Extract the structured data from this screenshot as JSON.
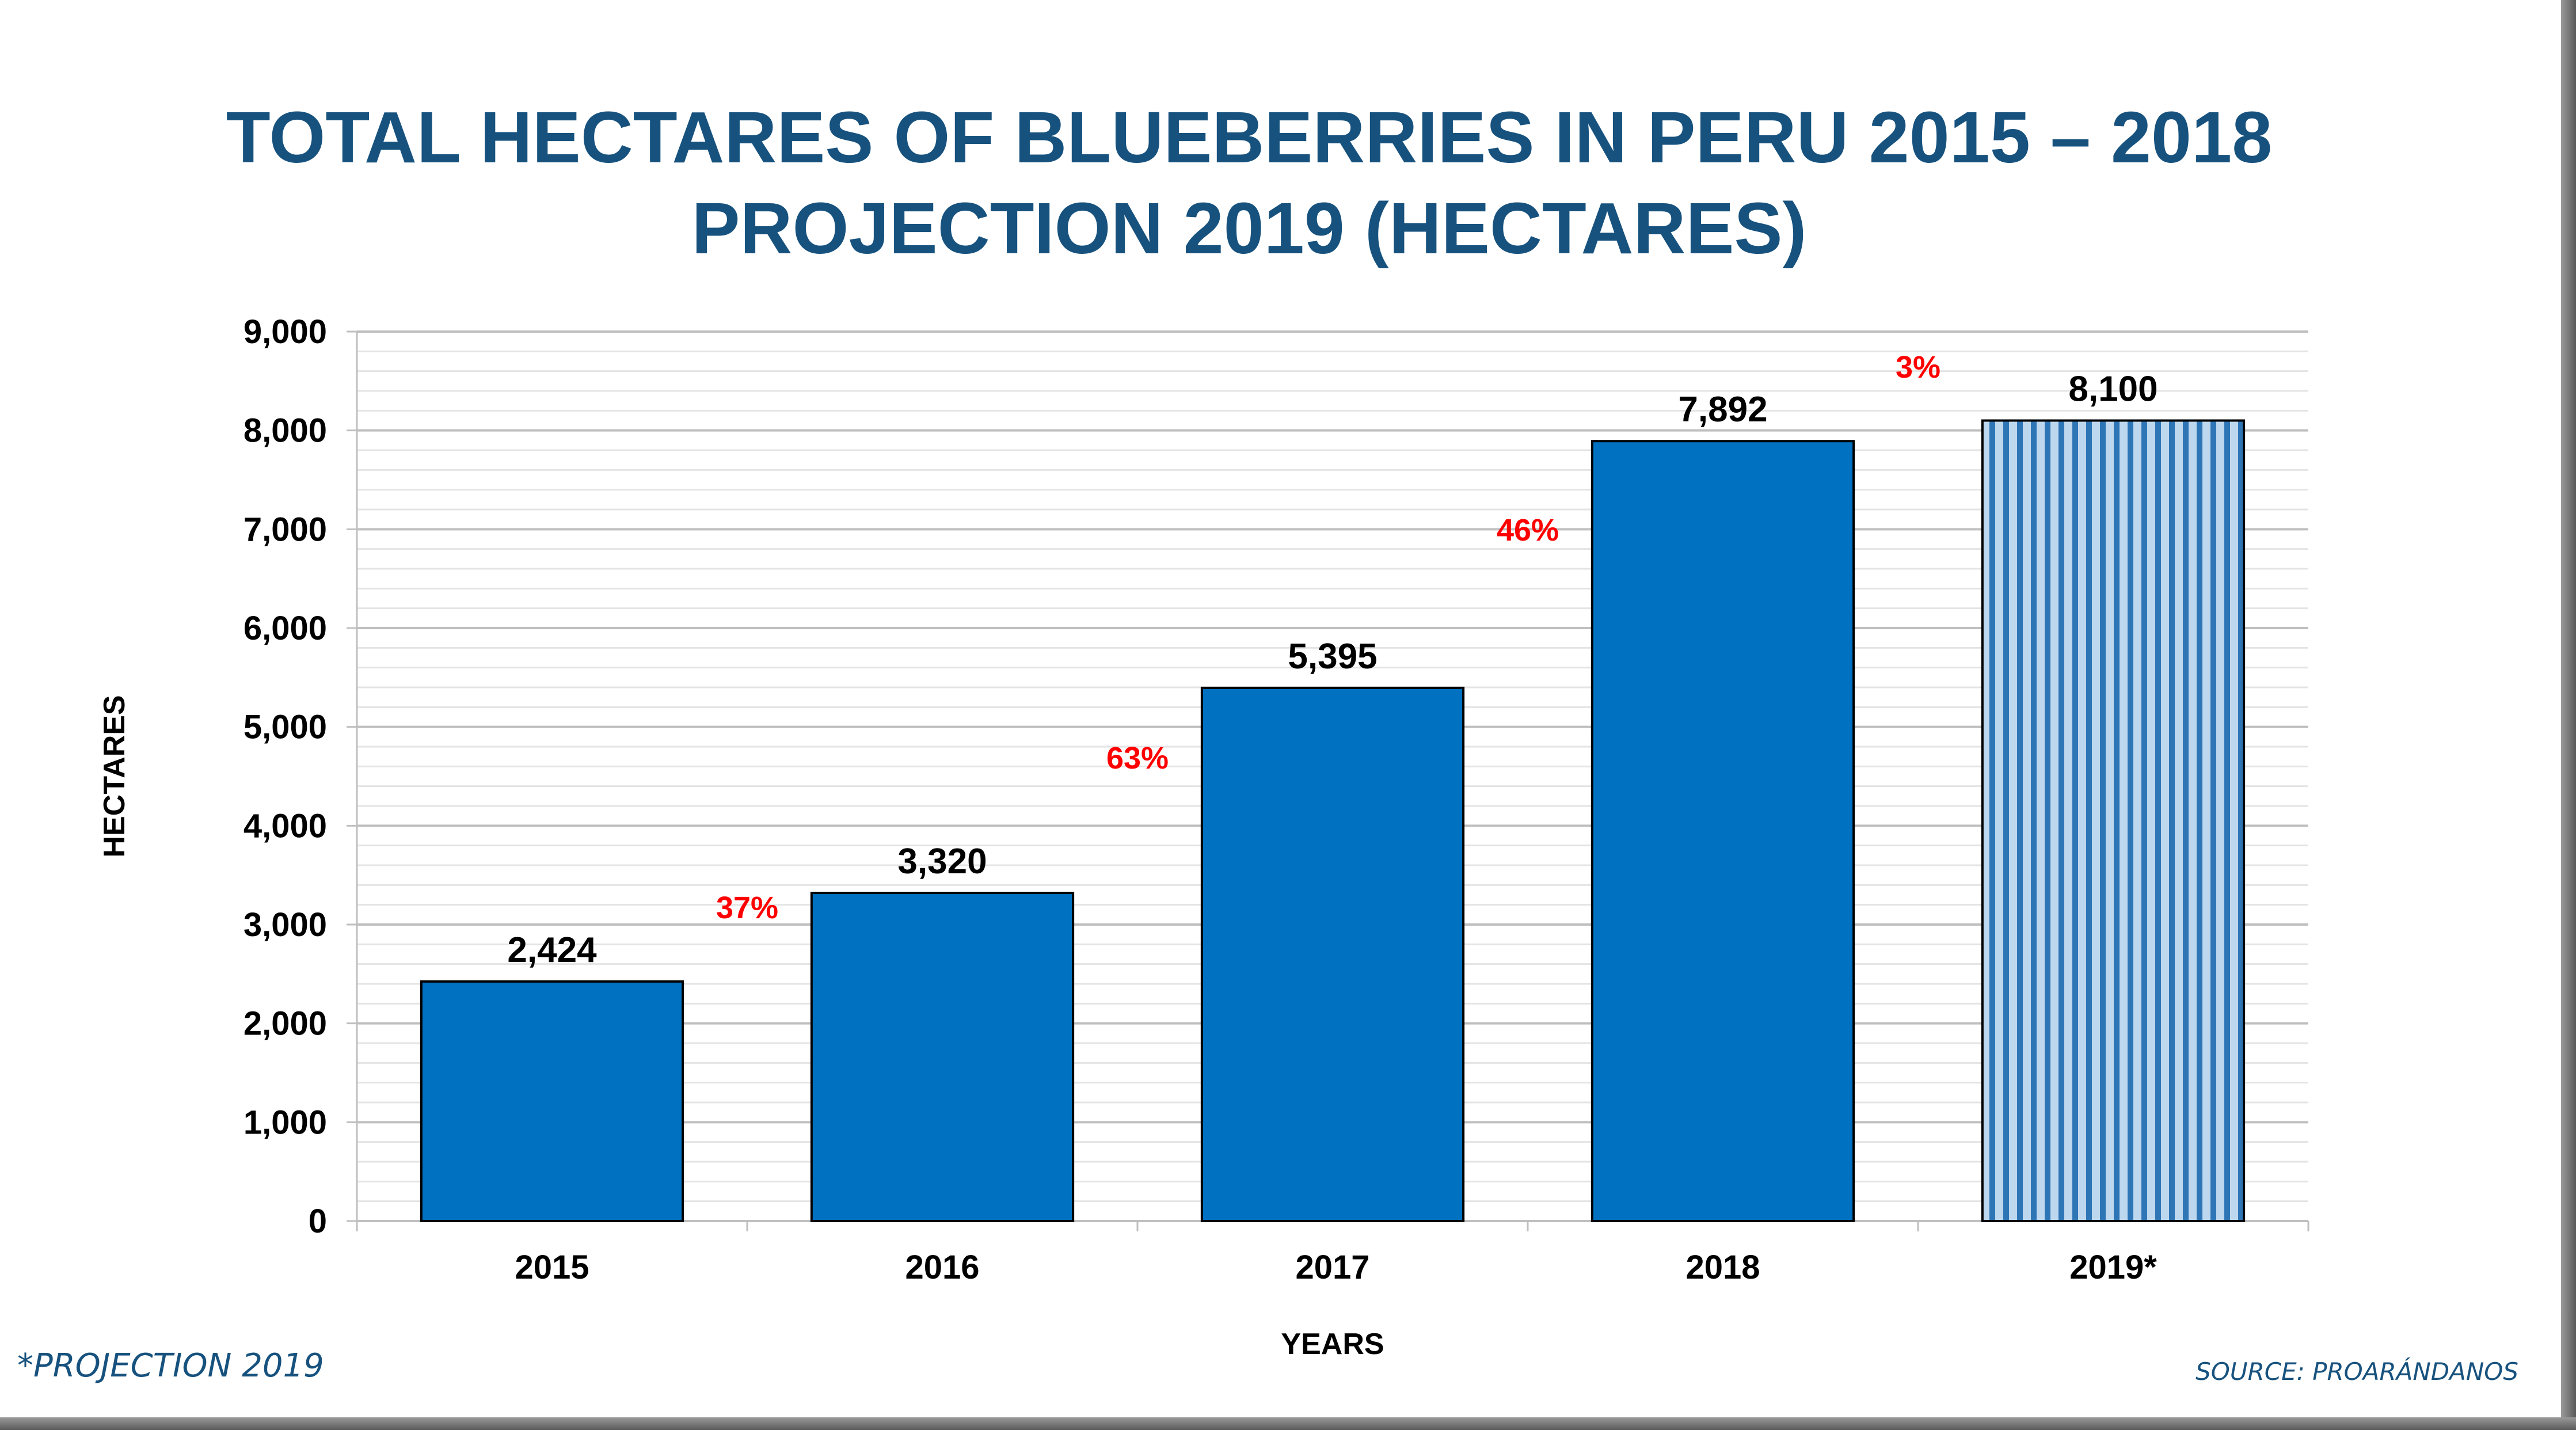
{
  "title": {
    "line1": "TOTAL HECTARES OF BLUEBERRIES IN PERU 2015 – 2018",
    "line2": "PROJECTION 2019 (HECTARES)"
  },
  "footnote": "*PROJECTION 2019",
  "source": "SOURCE: PROARÁNDANOS",
  "colors": {
    "title": "#17527E",
    "bar": "#0070C0",
    "projection_stripe_light": "#BDD7EE",
    "projection_stripe_dark": "#2E75B6",
    "growth": "#FF0000"
  },
  "chart_data": {
    "type": "bar",
    "categories": [
      "2015",
      "2016",
      "2017",
      "2018",
      "2019*"
    ],
    "values": [
      2424,
      3320,
      5395,
      7892,
      8100
    ],
    "value_labels": [
      "2,424",
      "3,320",
      "5,395",
      "7,892",
      "8,100"
    ],
    "projected": [
      false,
      false,
      false,
      false,
      true
    ],
    "growth_labels": [
      "37%",
      "63%",
      "46%",
      "3%"
    ],
    "growth_values": [
      37,
      63,
      46,
      3
    ],
    "xlabel": "YEARS",
    "ylabel": "HECTARES",
    "ylim": [
      0,
      9000
    ],
    "yticks": [
      0,
      1000,
      2000,
      3000,
      4000,
      5000,
      6000,
      7000,
      8000,
      9000
    ],
    "ytick_labels": [
      "0",
      "1,000",
      "2,000",
      "3,000",
      "4,000",
      "5,000",
      "6,000",
      "7,000",
      "8,000",
      "9,000"
    ],
    "grid": true,
    "legend": "none"
  }
}
